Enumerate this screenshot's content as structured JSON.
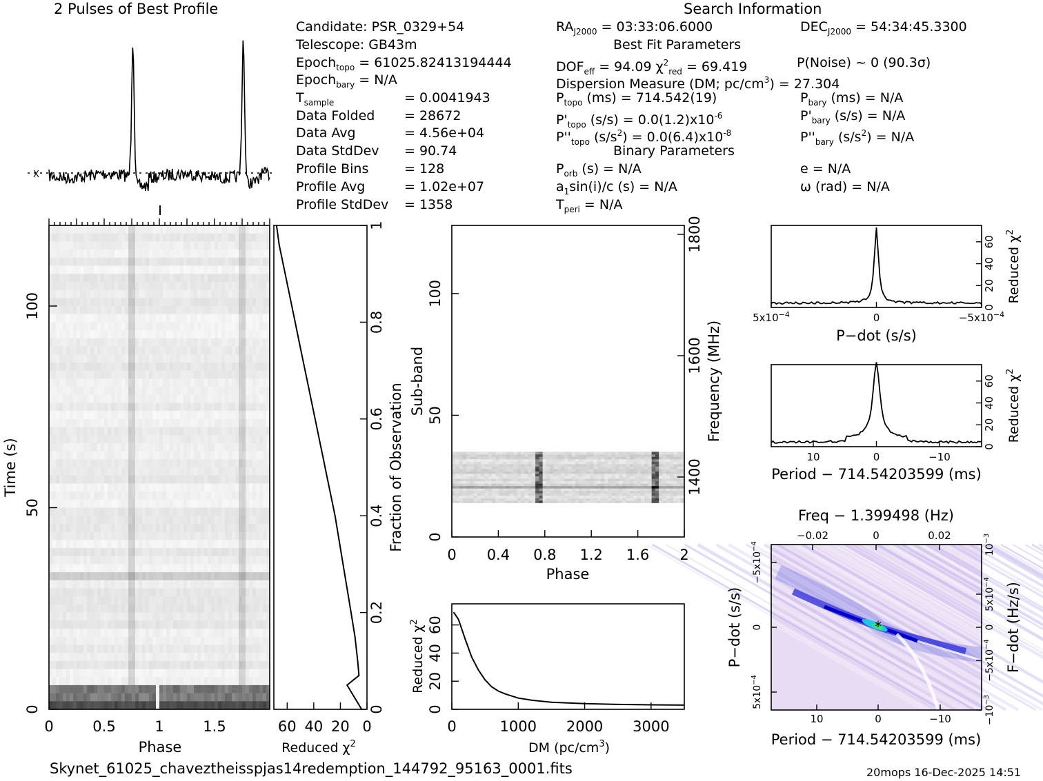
{
  "header": {
    "profile_title": "2 Pulses of Best Profile",
    "search_title": "Search Information",
    "best_fit_title": "Best Fit Parameters",
    "binary_title": "Binary Parameters",
    "filename": "Skynet_61025_chaveztheisspjas14redemption_144792_95163_0001.fits",
    "footer": "20mops 16-Dec-2025 14:51",
    "profile_marker": "X"
  },
  "info": {
    "candidate": "Candidate:  PSR_0329+54",
    "telescope": "Telescope:  GB43m",
    "epoch_topo_label": "Epoch",
    "epoch_topo_sub": "topo",
    "epoch_topo_val": " = 61025.82413194444",
    "epoch_bary_label": "Epoch",
    "epoch_bary_sub": "bary",
    "epoch_bary_val": " = N/A",
    "tsample_label": "T",
    "tsample_sub": "sample",
    "tsample_val": "=   0.0041943",
    "data_folded_label": "Data Folded",
    "data_folded_val": "=   28672",
    "data_avg_label": "Data Avg",
    "data_avg_val": "=   4.56e+04",
    "data_std_label": "Data StdDev",
    "data_std_val": "=   90.74",
    "prof_bins_label": "Profile Bins",
    "prof_bins_val": "=   128",
    "prof_avg_label": "Profile Avg",
    "prof_avg_val": "=   1.02e+07",
    "prof_std_label": "Profile StdDev",
    "prof_std_val": "=   1358"
  },
  "search": {
    "ra_label": "RA",
    "ra_sub": "J2000",
    "ra_val": " = 03:33:06.6000",
    "dec_label": "DEC",
    "dec_sub": "J2000",
    "dec_val": " = 54:34:45.3300",
    "dof_label": "DOF",
    "dof_sub": "eff",
    "dof_val": " = 94.09  ",
    "chi_label": "χ",
    "chi_sup": "2",
    "chi_sub": "red",
    "chi_val": " = 69.419",
    "pnoise": "P(Noise) ~ 0   (90.3σ)",
    "dm_a": "Dispersion Measure (DM; pc/cm",
    "dm_sup": "3",
    "dm_b": ") = 27.304",
    "ptopo_label": "P",
    "ptopo_sub": "topo",
    "ptopo_val": " (ms) =  714.542(19)",
    "pbary_label": "P",
    "pbary_sub": "bary",
    "pbary_val": " (ms) = N/A",
    "pdtopo_label": "P'",
    "pdtopo_sub": "topo",
    "pdtopo_val": " (s/s) = 0.0(1.2)x10",
    "pdtopo_sup": "-6",
    "pdbary_label": "P'",
    "pdbary_sub": "bary",
    "pdbary_val": " (s/s) = N/A",
    "pddtopo_label": "P''",
    "pddtopo_sub": "topo",
    "pddtopo_val_a": " (s/s",
    "pddtopo_val_sup": "2",
    "pddtopo_val_b": ") = 0.0(6.4)x10",
    "pddtopo_sup": "-8",
    "pddbary_label": "P''",
    "pddbary_sub": "bary",
    "pddbary_val_a": " (s/s",
    "pddbary_val_sup": "2",
    "pddbary_val_b": ") = N/A",
    "porb_label": "P",
    "porb_sub": "orb",
    "porb_val": " (s) = N/A",
    "e_val": "e = N/A",
    "asini_a": "a",
    "asini_sub": "1",
    "asini_b": "sin(i)/c (s) = N/A",
    "omega_val": "ω (rad) = N/A",
    "tperi_label": "T",
    "tperi_sub": "peri",
    "tperi_val": " = N/A"
  },
  "chart_data": [
    {
      "type": "line",
      "name": "pulse-profile",
      "title": "2 Pulses of Best Profile",
      "x": [
        0,
        2
      ],
      "peaks_phase": [
        0.76,
        1.76
      ],
      "description_series": "baseline noise with two narrow peaks"
    },
    {
      "type": "heatmap",
      "name": "time-phase",
      "xlabel": "Phase",
      "ylabel": "Time (s)",
      "right_label": "Fraction of Observation",
      "xticks": [
        "0",
        "0.5",
        "1",
        "1.5"
      ],
      "yticks": [
        "0",
        "50",
        "100"
      ],
      "right_ticks": [
        "0",
        "0.2",
        "0.4",
        "0.6",
        "0.8",
        "1"
      ],
      "xlim": [
        0,
        2
      ],
      "ylim": [
        0,
        120
      ],
      "pulse_phases": [
        0.76,
        1.76
      ]
    },
    {
      "type": "line",
      "name": "time-vs-chi2",
      "xlabel": "Reduced χ",
      "xlabel_sup": "2",
      "xticks": [
        "60",
        "40",
        "20",
        "0"
      ],
      "xlim": [
        70,
        0
      ],
      "chi2": [
        68,
        66,
        63,
        60,
        57,
        54,
        51,
        48,
        45,
        42,
        39,
        36,
        33,
        30,
        27,
        24,
        21,
        18,
        15,
        12,
        9,
        7,
        6,
        15,
        4
      ],
      "frac": [
        1.0,
        0.96,
        0.92,
        0.88,
        0.84,
        0.8,
        0.76,
        0.72,
        0.68,
        0.64,
        0.6,
        0.56,
        0.52,
        0.48,
        0.44,
        0.4,
        0.35,
        0.3,
        0.25,
        0.2,
        0.15,
        0.1,
        0.07,
        0.05,
        0.0
      ]
    },
    {
      "type": "heatmap",
      "name": "subband-phase",
      "xlabel": "Phase",
      "ylabel": "Sub-band",
      "right_label": "Frequency (MHz)",
      "xticks": [
        "0",
        "0.4",
        "0.8",
        "1.2",
        "1.6",
        "2"
      ],
      "yticks": [
        "0",
        "50",
        "100"
      ],
      "right_ticks": [
        "1400",
        "1600",
        "1800"
      ],
      "xlim": [
        0,
        2
      ],
      "ylim": [
        0,
        128
      ],
      "active_subbands": [
        14,
        35
      ]
    },
    {
      "type": "line",
      "name": "dm-chi2",
      "xlabel": "DM (pc/cm",
      "xlabel_sup": "3",
      "xlabel_end": ")",
      "ylabel": "Reduced χ",
      "ylabel_sup": "2",
      "xticks": [
        "0",
        "1000",
        "2000",
        "3000"
      ],
      "yticks": [
        "0",
        "20",
        "40",
        "60"
      ],
      "xlim": [
        0,
        3500
      ],
      "ylim": [
        0,
        75
      ],
      "x": [
        27,
        100,
        200,
        300,
        400,
        500,
        600,
        700,
        800,
        1000,
        1200,
        1500,
        2000,
        2500,
        3000,
        3500
      ],
      "y": [
        69,
        64,
        50,
        37,
        28,
        21,
        16,
        13,
        11,
        8,
        6.5,
        5,
        4,
        3.5,
        3.2,
        3
      ]
    },
    {
      "type": "line",
      "name": "pdot-chi2",
      "xlabel": "P−dot (s/s)",
      "ylabel": "Reduced χ",
      "ylabel_sup": "2",
      "xticks": [
        "5x10",
        "0",
        "−5x10"
      ],
      "xticks_sup": [
        "−4",
        "",
        "−4"
      ],
      "yticks": [
        "0",
        "20",
        "40",
        "60"
      ],
      "xlim": [
        0.0005,
        -0.0005
      ],
      "ylim": [
        0,
        75
      ],
      "peak": 69.4
    },
    {
      "type": "line",
      "name": "period-chi2",
      "xlabel": "Period − 714.54203599 (ms)",
      "ylabel": "Reduced χ",
      "ylabel_sup": "2",
      "xticks": [
        "10",
        "0",
        "−10"
      ],
      "yticks": [
        "0",
        "20",
        "40",
        "60"
      ],
      "xlim": [
        17,
        -17
      ],
      "ylim": [
        0,
        75
      ],
      "peak": 69.4
    },
    {
      "type": "heatmap",
      "name": "period-pdot",
      "top_label": "Freq − 1.399498 (Hz)",
      "top_ticks": [
        "−0.02",
        "0",
        "0.02"
      ],
      "xlabel": "Period − 714.54203599 (ms)",
      "xticks": [
        "10",
        "0",
        "−10"
      ],
      "ylabel": "P−dot (s/s)",
      "yticks": [
        "−5x10",
        "0",
        "5x10"
      ],
      "yticks_sup": [
        "−4",
        "",
        "−4"
      ],
      "right_label": "F−dot (Hz/s)",
      "right_ticks": [
        "10",
        "5x10",
        "0",
        "−5x10",
        "−10"
      ],
      "right_ticks_sup": [
        "−3",
        "−4",
        "",
        "−4",
        "−3"
      ],
      "best_marker": "*"
    }
  ]
}
